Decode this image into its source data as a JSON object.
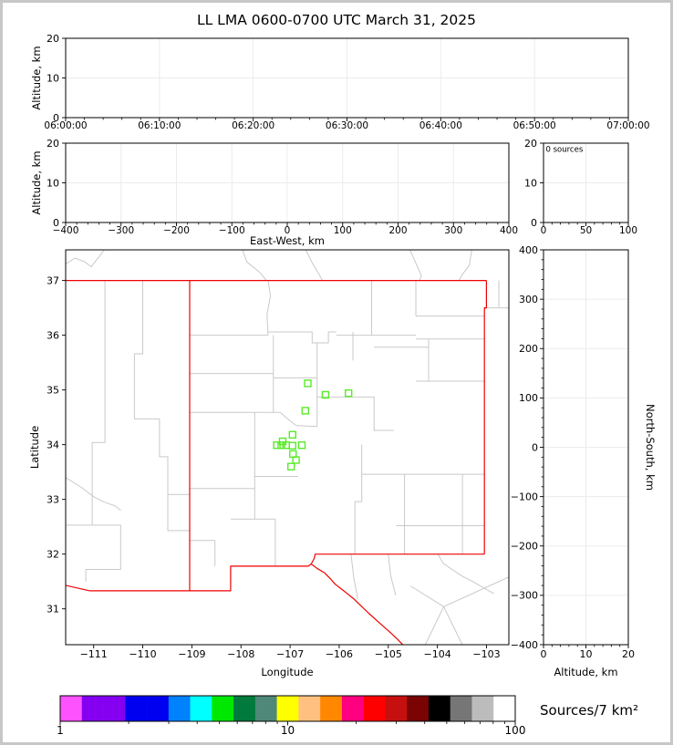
{
  "title": "LL LMA 0600-0700 UTC March 31, 2025",
  "panels": {
    "time_height": {
      "ylabel": "Altitude, km",
      "yticks": [
        "0",
        "10",
        "20"
      ],
      "xticks": [
        "06:00:00",
        "06:10:00",
        "06:20:00",
        "06:30:00",
        "06:40:00",
        "06:50:00",
        "07:00:00"
      ]
    },
    "ew_height": {
      "ylabel": "Altitude, km",
      "xlabel": "East-West, km",
      "yticks": [
        "0",
        "10",
        "20"
      ],
      "xticks": [
        "−400",
        "−300",
        "−200",
        "−100",
        "0",
        "100",
        "200",
        "300",
        "400"
      ]
    },
    "histogram": {
      "annotation": "0 sources",
      "xticks": [
        "0",
        "50",
        "100"
      ],
      "yticks": [
        "0",
        "10",
        "20"
      ]
    },
    "map": {
      "xlabel": "Longitude",
      "ylabel": "Latitude",
      "xticks": [
        "−111",
        "−110",
        "−109",
        "−108",
        "−107",
        "−106",
        "−105",
        "−104",
        "−103"
      ],
      "yticks": [
        "31",
        "32",
        "33",
        "34",
        "35",
        "36",
        "37"
      ]
    },
    "ns_height": {
      "xlabel": "Altitude, km",
      "ylabel_right": "North-South, km",
      "xticks": [
        "0",
        "10",
        "20"
      ],
      "yticks": [
        "400",
        "300",
        "200",
        "100",
        "0",
        "−100",
        "−200",
        "−300",
        "−400"
      ]
    },
    "colorbar": {
      "label": "Sources/7 km²",
      "tick_labels": [
        "1",
        "10",
        "100"
      ]
    }
  },
  "colors": {
    "state_border": "#ee0000",
    "county_border": "#c9c9c9",
    "station": "#57ec28",
    "grid": "#ececec",
    "frame": "#000000",
    "page_border": "#c7c7c7"
  },
  "chart_data": {
    "type": "scatter",
    "title": "LL LMA 0600-0700 UTC March 31, 2025",
    "source_count": 0,
    "annotation": "0 sources",
    "time_range": [
      "06:00:00",
      "07:00:00"
    ],
    "altitude_km_range": [
      0,
      20
    ],
    "east_west_km_range": [
      -400,
      400
    ],
    "north_south_km_range": [
      -400,
      400
    ],
    "histogram_x_range": [
      0,
      100
    ],
    "map_lon_range": [
      -111.57,
      -102.545
    ],
    "map_lat_range": [
      30.345,
      37.56
    ],
    "lightning_sources": [],
    "stations_lonlat": [
      [
        -106.64,
        35.12
      ],
      [
        -106.28,
        34.91
      ],
      [
        -105.81,
        34.94
      ],
      [
        -106.69,
        34.62
      ],
      [
        -106.95,
        34.18
      ],
      [
        -107.15,
        34.06
      ],
      [
        -107.27,
        33.99
      ],
      [
        -107.18,
        33.99
      ],
      [
        -107.08,
        33.99
      ],
      [
        -106.95,
        33.98
      ],
      [
        -106.76,
        33.99
      ],
      [
        -106.94,
        33.83
      ],
      [
        -106.88,
        33.72
      ],
      [
        -106.98,
        33.6
      ]
    ],
    "colorbar": {
      "scale": "log",
      "range": [
        1,
        100
      ],
      "label": "Sources/7 km²",
      "segment_colors": [
        "#ff52ff",
        "#8500f0",
        "#8500f0",
        "#0000f0",
        "#0000f0",
        "#0082ff",
        "#00ffff",
        "#00e800",
        "#007a3d",
        "#4f8878",
        "#ffff00",
        "#ffc080",
        "#ff8800",
        "#ff0080",
        "#ff0000",
        "#c61010",
        "#7a0404",
        "#000000",
        "#767676",
        "#bcbcbc",
        "#ffffff"
      ]
    },
    "map_shapes": {
      "state_lines": [
        [
          [
            -111.57,
            37.0
          ],
          [
            -103.002,
            37.0
          ]
        ],
        [
          [
            -103.002,
            37.0
          ],
          [
            -103.002,
            36.5
          ],
          [
            -103.042,
            36.5
          ],
          [
            -103.042,
            32.0
          ]
        ],
        [
          [
            -103.042,
            32.0
          ],
          [
            -106.49,
            32.0
          ],
          [
            -106.51,
            31.92
          ],
          [
            -106.57,
            31.82
          ],
          [
            -106.63,
            31.78
          ],
          [
            -108.21,
            31.78
          ],
          [
            -108.21,
            31.33
          ],
          [
            -111.08,
            31.33
          ],
          [
            -111.57,
            31.43
          ]
        ],
        [
          [
            -109.045,
            37.0
          ],
          [
            -109.045,
            31.33
          ]
        ],
        [
          [
            -106.57,
            31.82
          ],
          [
            -106.45,
            31.74
          ],
          [
            -106.3,
            31.66
          ],
          [
            -106.18,
            31.55
          ],
          [
            -106.08,
            31.45
          ],
          [
            -105.95,
            31.36
          ],
          [
            -105.85,
            31.29
          ],
          [
            -105.7,
            31.18
          ],
          [
            -105.55,
            31.05
          ],
          [
            -105.4,
            30.92
          ],
          [
            -105.25,
            30.8
          ],
          [
            -105.1,
            30.68
          ],
          [
            -104.95,
            30.56
          ],
          [
            -104.82,
            30.45
          ],
          [
            -104.7,
            30.34
          ]
        ]
      ],
      "county_lines": [
        [
          [
            -111.57,
            37.3
          ],
          [
            -111.38,
            37.41
          ],
          [
            -111.18,
            37.34
          ],
          [
            -111.05,
            37.25
          ],
          [
            -110.92,
            37.4
          ],
          [
            -110.78,
            37.56
          ]
        ],
        [
          [
            -107.97,
            37.56
          ],
          [
            -107.88,
            37.34
          ],
          [
            -107.62,
            37.15
          ],
          [
            -107.48,
            37.0
          ]
        ],
        [
          [
            -106.68,
            37.56
          ],
          [
            -106.56,
            37.34
          ],
          [
            -106.44,
            37.16
          ],
          [
            -106.34,
            37.0
          ]
        ],
        [
          [
            -104.56,
            37.56
          ],
          [
            -104.42,
            37.28
          ],
          [
            -104.33,
            37.1
          ],
          [
            -104.36,
            37.0
          ]
        ],
        [
          [
            -103.3,
            37.56
          ],
          [
            -103.35,
            37.28
          ],
          [
            -103.5,
            37.1
          ],
          [
            -103.56,
            37.0
          ]
        ],
        [
          [
            -102.75,
            37.0
          ],
          [
            -102.75,
            36.5
          ]
        ],
        [
          [
            -103.04,
            36.5
          ],
          [
            -102.55,
            36.5
          ]
        ],
        [
          [
            -110.77,
            37.0
          ],
          [
            -110.77,
            34.04
          ],
          [
            -111.03,
            34.04
          ],
          [
            -111.03,
            32.53
          ]
        ],
        [
          [
            -111.57,
            33.4
          ],
          [
            -111.25,
            33.22
          ],
          [
            -111.0,
            33.05
          ],
          [
            -110.78,
            32.95
          ],
          [
            -110.56,
            32.88
          ],
          [
            -110.45,
            32.8
          ]
        ],
        [
          [
            -111.57,
            32.53
          ],
          [
            -110.45,
            32.53
          ],
          [
            -110.45,
            31.72
          ],
          [
            -111.16,
            31.72
          ],
          [
            -111.16,
            31.5
          ]
        ],
        [
          [
            -110.0,
            37.0
          ],
          [
            -110.0,
            35.66
          ],
          [
            -110.17,
            35.66
          ],
          [
            -110.17,
            34.47
          ],
          [
            -109.66,
            34.47
          ],
          [
            -109.66,
            33.78
          ],
          [
            -109.49,
            33.78
          ],
          [
            -109.49,
            32.43
          ],
          [
            -109.05,
            32.43
          ]
        ],
        [
          [
            -109.49,
            33.09
          ],
          [
            -109.05,
            33.09
          ]
        ],
        [
          [
            -107.45,
            37.0
          ],
          [
            -107.4,
            36.72
          ],
          [
            -107.47,
            36.38
          ],
          [
            -107.45,
            36.0
          ]
        ],
        [
          [
            -109.05,
            36.0
          ],
          [
            -107.45,
            36.0
          ]
        ],
        [
          [
            -107.45,
            36.06
          ],
          [
            -106.55,
            36.06
          ],
          [
            -106.55,
            35.86
          ],
          [
            -106.22,
            35.86
          ],
          [
            -106.22,
            36.06
          ],
          [
            -106.06,
            36.06
          ]
        ],
        [
          [
            -107.34,
            36.0
          ],
          [
            -107.34,
            35.3
          ]
        ],
        [
          [
            -109.05,
            35.3
          ],
          [
            -107.34,
            35.3
          ]
        ],
        [
          [
            -107.34,
            35.3
          ],
          [
            -107.34,
            34.59
          ]
        ],
        [
          [
            -109.05,
            34.59
          ],
          [
            -107.72,
            34.59
          ],
          [
            -107.2,
            34.59
          ],
          [
            -107.05,
            34.47
          ],
          [
            -106.88,
            34.35
          ],
          [
            -106.45,
            34.33
          ]
        ],
        [
          [
            -106.45,
            35.86
          ],
          [
            -106.45,
            34.33
          ]
        ],
        [
          [
            -107.34,
            35.22
          ],
          [
            -106.45,
            35.22
          ]
        ],
        [
          [
            -106.45,
            34.87
          ],
          [
            -105.29,
            34.87
          ],
          [
            -105.29,
            34.26
          ],
          [
            -104.89,
            34.26
          ]
        ],
        [
          [
            -106.06,
            36.0
          ],
          [
            -104.44,
            36.0
          ]
        ],
        [
          [
            -105.34,
            37.0
          ],
          [
            -105.34,
            36.0
          ]
        ],
        [
          [
            -105.72,
            36.06
          ],
          [
            -105.72,
            35.54
          ]
        ],
        [
          [
            -105.29,
            35.78
          ],
          [
            -104.18,
            35.78
          ]
        ],
        [
          [
            -104.44,
            37.0
          ],
          [
            -104.44,
            36.35
          ]
        ],
        [
          [
            -104.44,
            36.35
          ],
          [
            -103.04,
            36.35
          ]
        ],
        [
          [
            -104.44,
            35.93
          ],
          [
            -103.04,
            35.93
          ]
        ],
        [
          [
            -104.18,
            35.93
          ],
          [
            -104.18,
            35.16
          ]
        ],
        [
          [
            -104.44,
            35.16
          ],
          [
            -103.04,
            35.16
          ]
        ],
        [
          [
            -105.54,
            34.0
          ],
          [
            -105.54,
            32.96
          ],
          [
            -105.68,
            32.96
          ],
          [
            -105.68,
            32.0
          ]
        ],
        [
          [
            -105.54,
            33.46
          ],
          [
            -103.04,
            33.46
          ]
        ],
        [
          [
            -104.67,
            33.46
          ],
          [
            -104.67,
            32.0
          ]
        ],
        [
          [
            -103.49,
            33.46
          ],
          [
            -103.49,
            32.0
          ]
        ],
        [
          [
            -104.84,
            32.52
          ],
          [
            -103.04,
            32.52
          ]
        ],
        [
          [
            -107.72,
            33.42
          ],
          [
            -106.84,
            33.42
          ]
        ],
        [
          [
            -109.05,
            33.2
          ],
          [
            -107.72,
            33.2
          ]
        ],
        [
          [
            -107.72,
            34.59
          ],
          [
            -107.72,
            33.2
          ],
          [
            -107.72,
            32.64
          ]
        ],
        [
          [
            -108.21,
            32.64
          ],
          [
            -107.3,
            32.64
          ]
        ],
        [
          [
            -107.3,
            32.64
          ],
          [
            -107.3,
            31.78
          ]
        ],
        [
          [
            -108.53,
            32.25
          ],
          [
            -108.53,
            31.78
          ]
        ],
        [
          [
            -109.05,
            32.25
          ],
          [
            -108.53,
            32.25
          ]
        ],
        [
          [
            -103.99,
            32.0
          ],
          [
            -103.88,
            31.83
          ],
          [
            -103.7,
            31.72
          ],
          [
            -103.5,
            31.6
          ],
          [
            -103.28,
            31.5
          ],
          [
            -103.05,
            31.38
          ],
          [
            -102.85,
            31.28
          ]
        ],
        [
          [
            -103.87,
            31.04
          ],
          [
            -102.55,
            31.58
          ]
        ],
        [
          [
            -103.87,
            31.04
          ],
          [
            -103.49,
            30.34
          ]
        ],
        [
          [
            -103.87,
            31.04
          ],
          [
            -104.55,
            31.42
          ]
        ],
        [
          [
            -103.87,
            31.04
          ],
          [
            -104.25,
            30.34
          ]
        ],
        [
          [
            -105.76,
            32.0
          ],
          [
            -105.7,
            31.55
          ],
          [
            -105.62,
            31.18
          ]
        ],
        [
          [
            -105.0,
            32.0
          ],
          [
            -104.95,
            31.6
          ],
          [
            -104.85,
            31.25
          ]
        ]
      ]
    }
  }
}
